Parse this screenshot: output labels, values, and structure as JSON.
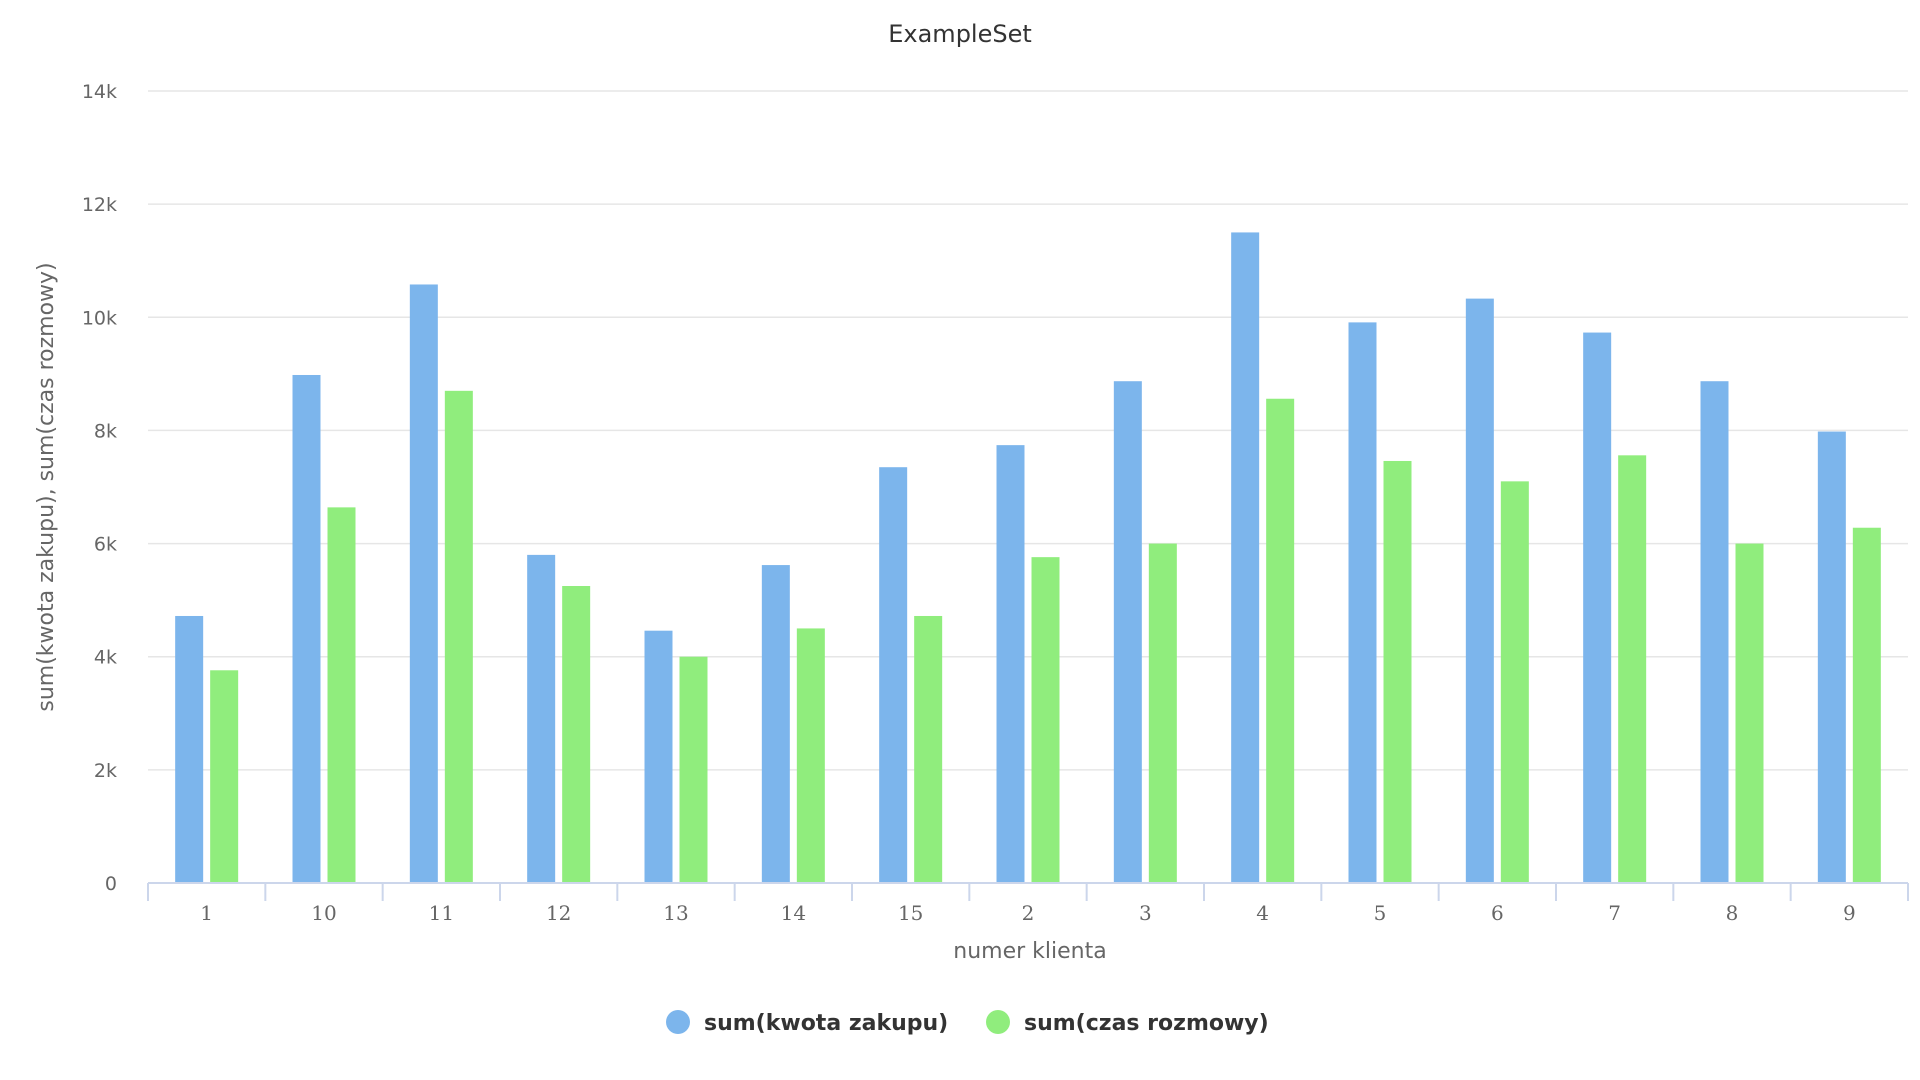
{
  "chart_data": {
    "type": "bar",
    "title": "ExampleSet",
    "xlabel": "numer klienta",
    "ylabel": "sum(kwota zakupu), sum(czas rozmowy)",
    "categories": [
      "1",
      "10",
      "11",
      "12",
      "13",
      "14",
      "15",
      "2",
      "3",
      "4",
      "5",
      "6",
      "7",
      "8",
      "9"
    ],
    "series": [
      {
        "name": "sum(kwota zakupu)",
        "color": "#7cb5ec",
        "values": [
          4720,
          8980,
          10580,
          5800,
          4460,
          5620,
          7350,
          7740,
          8870,
          11500,
          9910,
          10330,
          9730,
          8870,
          7980
        ]
      },
      {
        "name": "sum(czas rozmowy)",
        "color": "#90ed7d",
        "values": [
          3760,
          6640,
          8700,
          5250,
          4000,
          4500,
          4720,
          5760,
          6000,
          8560,
          7460,
          7100,
          7560,
          6000,
          6280
        ]
      }
    ],
    "ylim": [
      0,
      14000
    ],
    "y_ticks": [
      0,
      2000,
      4000,
      6000,
      8000,
      10000,
      12000,
      14000
    ],
    "y_tick_labels": [
      "0",
      "2k",
      "4k",
      "6k",
      "8k",
      "10k",
      "12k",
      "14k"
    ],
    "grid": true,
    "legend_position": "bottom-center"
  }
}
